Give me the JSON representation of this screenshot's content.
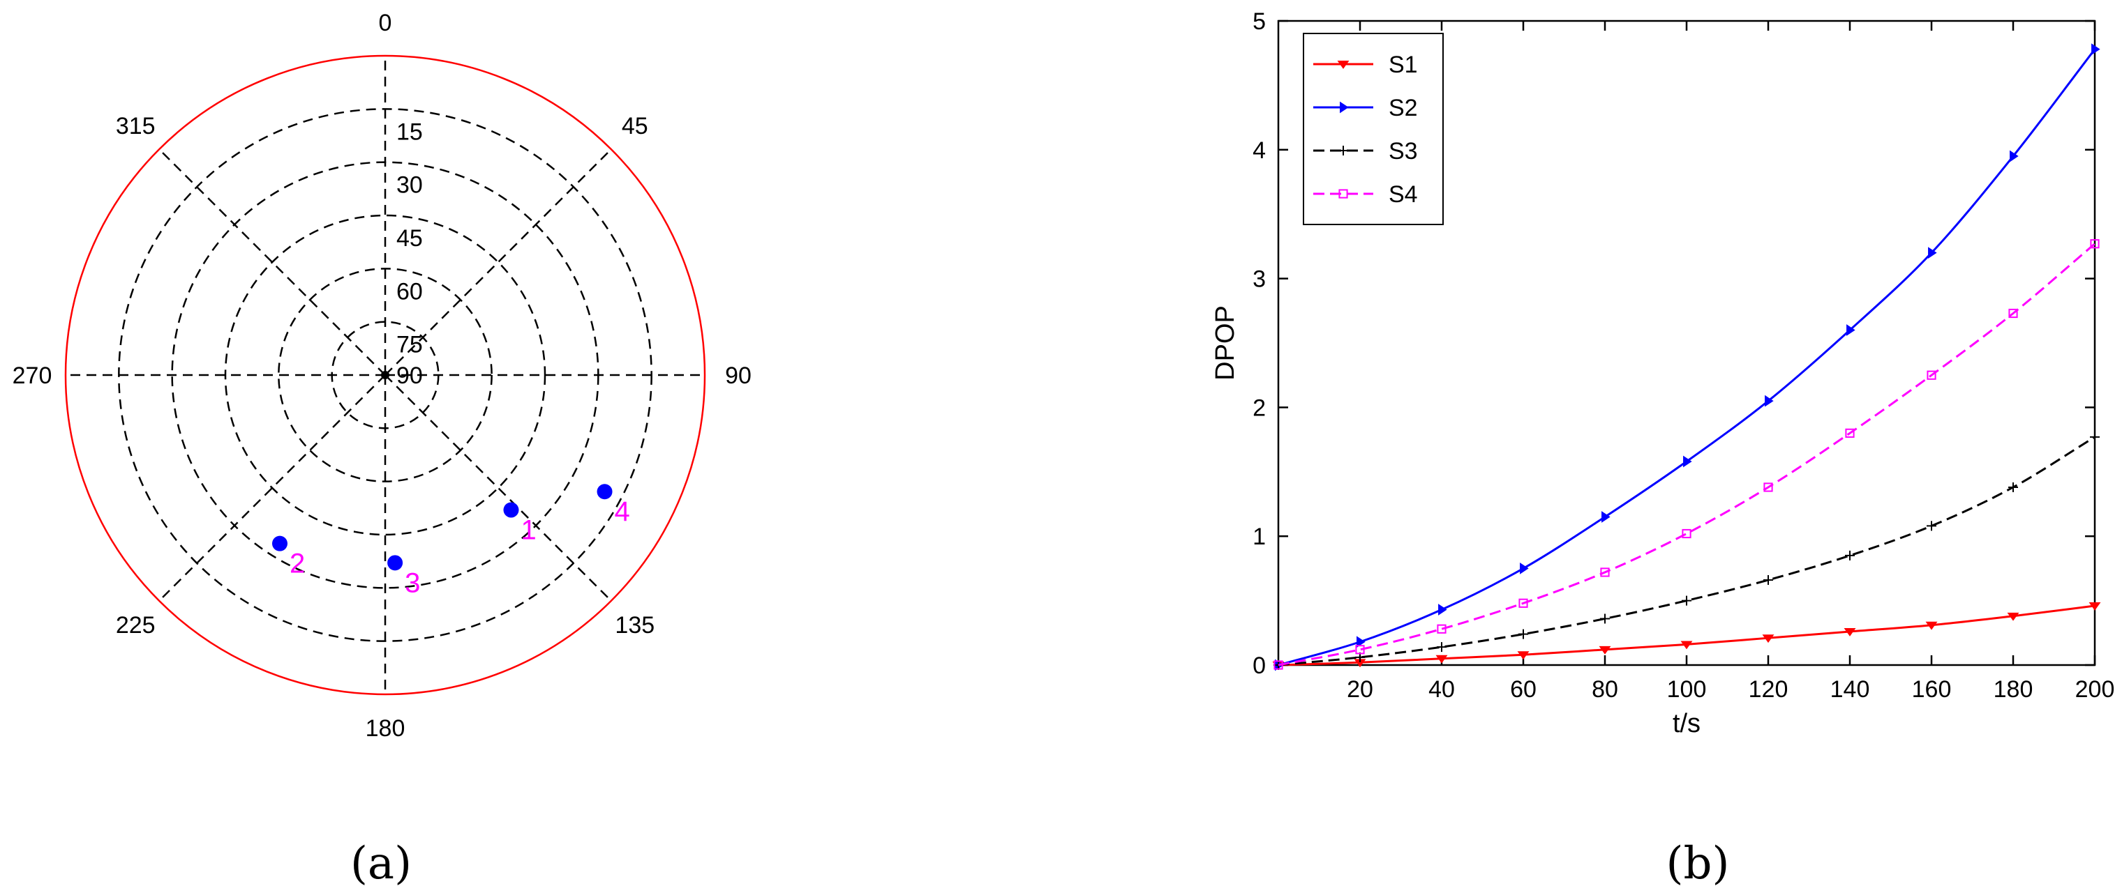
{
  "panel_labels": {
    "a": "(a)",
    "b": "(b)"
  },
  "chart_data": [
    {
      "type": "scatter",
      "subtype": "polar-skyplot",
      "azimuth_labels": [
        "0",
        "45",
        "90",
        "135",
        "180",
        "225",
        "270",
        "315"
      ],
      "elevation_labels": [
        "15",
        "30",
        "45",
        "60",
        "75",
        "90"
      ],
      "elevation_range": [
        0,
        90
      ],
      "grid": true,
      "colors": {
        "outer_circle": "#ff0000",
        "points": "#0000ff",
        "point_labels": "#ff00ff"
      },
      "points": [
        {
          "label": "1",
          "azimuth": 137,
          "elevation": 38
        },
        {
          "label": "2",
          "azimuth": 212,
          "elevation": 34
        },
        {
          "label": "3",
          "azimuth": 177,
          "elevation": 37
        },
        {
          "label": "4",
          "azimuth": 118,
          "elevation": 20
        }
      ]
    },
    {
      "type": "line",
      "xlabel": "t/s",
      "ylabel": "DPOP",
      "xlim": [
        0,
        200
      ],
      "ylim": [
        0,
        5
      ],
      "xticks": [
        "20",
        "40",
        "60",
        "80",
        "100",
        "120",
        "140",
        "160",
        "180",
        "200"
      ],
      "yticks": [
        "0",
        "1",
        "2",
        "3",
        "4",
        "5"
      ],
      "legend_position": "top-left",
      "x": [
        0,
        20,
        40,
        60,
        80,
        100,
        120,
        140,
        160,
        180,
        200
      ],
      "series": [
        {
          "name": "S1",
          "color": "#ff0000",
          "style": "solid",
          "marker": "triangle-down",
          "values": [
            0,
            0.02,
            0.05,
            0.08,
            0.12,
            0.16,
            0.21,
            0.26,
            0.31,
            0.38,
            0.46
          ]
        },
        {
          "name": "S2",
          "color": "#0000ff",
          "style": "solid",
          "marker": "triangle-right",
          "values": [
            0,
            0.18,
            0.43,
            0.75,
            1.15,
            1.58,
            2.05,
            2.6,
            3.2,
            3.95,
            4.78
          ]
        },
        {
          "name": "S3",
          "color": "#000000",
          "style": "dashed",
          "marker": "plus",
          "values": [
            0,
            0.06,
            0.14,
            0.24,
            0.36,
            0.5,
            0.66,
            0.85,
            1.08,
            1.38,
            1.77
          ]
        },
        {
          "name": "S4",
          "color": "#ff00ff",
          "style": "dashed",
          "marker": "square",
          "values": [
            0,
            0.12,
            0.28,
            0.48,
            0.72,
            1.02,
            1.38,
            1.8,
            2.25,
            2.73,
            3.27
          ]
        }
      ]
    }
  ]
}
